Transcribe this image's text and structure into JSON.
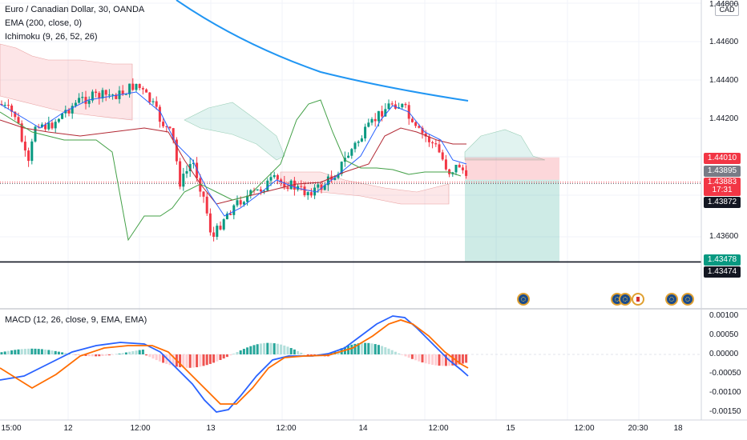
{
  "legend": {
    "symbol": "Euro / Canadian Dollar, 30, OANDA",
    "ema": "EMA (200, close, 0)",
    "ichimoku": "Ichimoku (9, 26, 52, 26)",
    "macd": "MACD (12, 26, close, 9, EMA, EMA)"
  },
  "currency_box": "CAD",
  "price_axis": {
    "ticks": [
      "1.44800",
      "1.44600",
      "1.44400",
      "1.44200",
      "1.43600"
    ],
    "badges": [
      {
        "label": "1.44010",
        "color": "#f23645"
      },
      {
        "label": "1.43895",
        "color": "#787b86"
      },
      {
        "label": "1.43883",
        "sub": "17:31",
        "color": "#f23645"
      },
      {
        "label": "1.43872",
        "color": "#131722"
      },
      {
        "label": "1.43478",
        "color": "#089981"
      },
      {
        "label": "1.43474",
        "color": "#131722"
      }
    ]
  },
  "macd_axis": {
    "ticks": [
      "0.00100",
      "0.00050",
      "0.00000",
      "-0.00050",
      "-0.00100",
      "-0.00150"
    ]
  },
  "time_axis": {
    "labels": [
      "15:00",
      "12",
      "12:00",
      "13",
      "12:00",
      "14",
      "12:00",
      "15",
      "12:00",
      "20:30",
      "18"
    ]
  },
  "events": [
    {
      "name": "eu-event-icon",
      "type": "eu"
    },
    {
      "name": "eu-event-icon",
      "type": "eu"
    },
    {
      "name": "eu-event-icon",
      "type": "eu"
    },
    {
      "name": "ca-event-icon",
      "type": "ca"
    },
    {
      "name": "eu-event-icon",
      "type": "eu"
    },
    {
      "name": "eu-event-icon",
      "type": "eu"
    }
  ],
  "chart_data": {
    "type": "candlestick",
    "y_range": [
      1.4348,
      1.448
    ],
    "support_level": 1.43474,
    "current_price": 1.43883,
    "position": {
      "entry": 1.43895,
      "stop": 1.4401,
      "target": 1.43478
    },
    "colors": {
      "up": "#089981",
      "down": "#f23645",
      "ema": "#2196f3",
      "macd": "#2962ff",
      "signal": "#ff6d00"
    },
    "macd_range": [
      -0.0016,
      0.0012
    ]
  }
}
